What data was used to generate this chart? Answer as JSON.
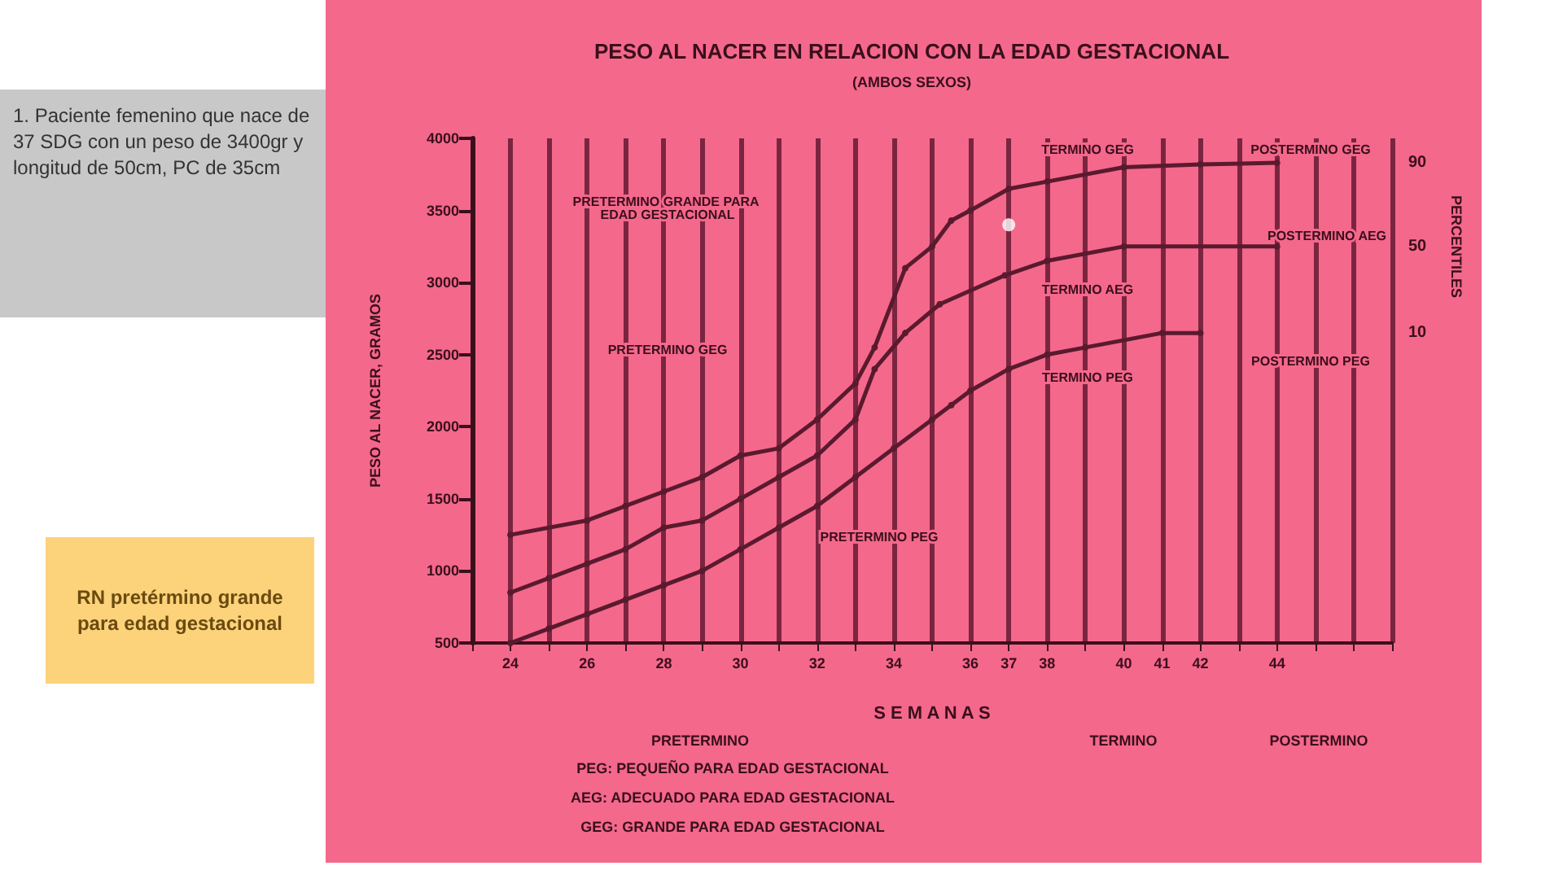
{
  "chart_data": {
    "type": "line",
    "title": "PESO AL NACER EN RELACION CON LA EDAD GESTACIONAL",
    "subtitle": "(AMBOS SEXOS)",
    "xlabel": "S E M A N A S",
    "ylabel": "PESO AL NACER, GRAMOS",
    "y2label": "PERCENTILES",
    "xlim": [
      23,
      47
    ],
    "xticks": [
      {
        "value": 23,
        "label": null
      },
      24,
      {
        "value": 25,
        "label": null
      },
      26,
      {
        "value": 27,
        "label": null
      },
      28,
      {
        "value": 29,
        "label": null
      },
      30,
      {
        "value": 31,
        "label": null
      },
      32,
      {
        "value": 33,
        "label": null
      },
      34,
      {
        "value": 35,
        "label": null
      },
      36,
      37,
      38,
      {
        "value": 39,
        "label": null
      },
      40,
      41,
      42,
      {
        "value": 43,
        "label": null
      },
      44,
      {
        "value": 45,
        "label": null
      },
      {
        "value": 46,
        "label": null
      },
      {
        "value": 47,
        "label": null
      }
    ],
    "ylim": [
      500,
      4000
    ],
    "yticks": [
      500,
      1000,
      1500,
      2000,
      2500,
      3000,
      3500,
      4000
    ],
    "grid": "x",
    "marker": "circle",
    "line_style": "solid",
    "legend": false,
    "series": [
      {
        "name": "90",
        "color": "#5a1a2e",
        "x": [
          24,
          26,
          27,
          28,
          29,
          30,
          31,
          32,
          33,
          33.5,
          34.3,
          35,
          35.5,
          36,
          37,
          38,
          40,
          42,
          44
        ],
        "values": [
          1250,
          1350,
          1450,
          1550,
          1650,
          1800,
          1850,
          2050,
          2300,
          2550,
          3100,
          3250,
          3430,
          3500,
          3650,
          3700,
          3800,
          3820,
          3830
        ]
      },
      {
        "name": "50",
        "color": "#5a1a2e",
        "x": [
          24,
          25,
          26,
          27,
          28,
          29,
          30,
          31,
          32,
          33,
          33.5,
          34.3,
          35.2,
          36.9,
          38,
          40,
          44
        ],
        "values": [
          850,
          950,
          1050,
          1150,
          1300,
          1350,
          1500,
          1650,
          1800,
          2050,
          2400,
          2650,
          2850,
          3050,
          3150,
          3250,
          3250
        ]
      },
      {
        "name": "10",
        "color": "#5a1a2e",
        "x": [
          24,
          25,
          26,
          27,
          28,
          29,
          30,
          31,
          32,
          33,
          34,
          35,
          35.5,
          36,
          37,
          38,
          39,
          41,
          42
        ],
        "values": [
          500,
          600,
          700,
          800,
          900,
          1000,
          1150,
          1300,
          1450,
          1650,
          1850,
          2050,
          2150,
          2250,
          2400,
          2500,
          2550,
          2650,
          2650
        ]
      },
      {
        "type": "scatter",
        "color": "#ffffff",
        "x": [
          37
        ],
        "values": [
          3400
        ]
      }
    ],
    "annotations": [
      "PRETERMINO GRANDE PARA EDAD GESTACIONAL",
      "PRETERMINO GEG",
      "PRETERMINO PEG",
      "TERMINO GEG",
      "TERMINO AEG",
      "TERMINO PEG",
      "POSTERMINO GEG",
      "POSTERMINO AEG",
      "POSTERMINO PEG",
      "PRETERMINO",
      "TERMINO",
      "POSTERMINO",
      "PEG: PEQUEÑO PARA EDAD GESTACIONAL",
      "AEG: ADECUADO PARA EDAD GESTACIONAL",
      "GEG: GRANDE PARA EDAD GESTACIONAL",
      "1. Paciente femenino que nace de 37 SDG con un peso de 3400gr y longitud de 50cm, PC de 35cm",
      "RN pretérmino grande para edad gestacional"
    ]
  }
}
